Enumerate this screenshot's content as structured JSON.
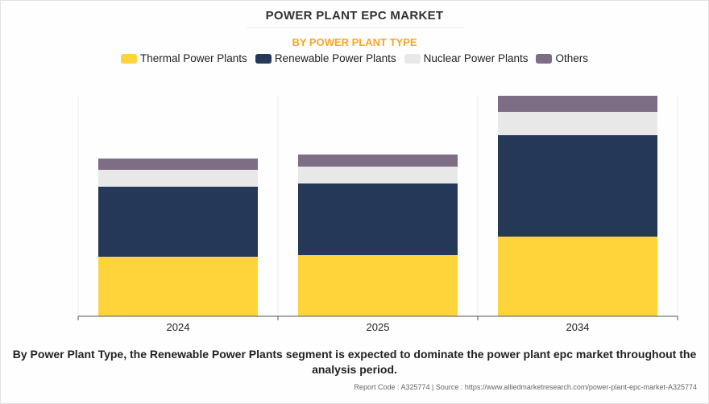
{
  "chart_data": {
    "type": "bar",
    "stacked": true,
    "title": "POWER PLANT EPC MARKET",
    "subtitle": "BY POWER PLANT TYPE",
    "categories": [
      "2024",
      "2025",
      "2034"
    ],
    "series": [
      {
        "name": "Thermal Power Plants",
        "color": "#ffd43b",
        "values": [
          74,
          76,
          99
        ]
      },
      {
        "name": "Renewable Power Plants",
        "color": "#253858",
        "values": [
          87,
          89,
          126
        ]
      },
      {
        "name": "Nuclear Power Plants",
        "color": "#e8e8e8",
        "values": [
          21,
          21,
          29
        ]
      },
      {
        "name": "Others",
        "color": "#7d6e86",
        "values": [
          14,
          15,
          20
        ]
      }
    ],
    "ylim": [
      0,
      274
    ],
    "xlabel": "",
    "ylabel": "",
    "grid": false,
    "legend": "top"
  },
  "caption": "By Power Plant Type, the Renewable Power Plants segment is expected to dominate the power plant epc market throughout the analysis period.",
  "footer": "Report Code : A325774  |  Source : https://www.alliedmarketresearch.com/power-plant-epc-market-A325774"
}
